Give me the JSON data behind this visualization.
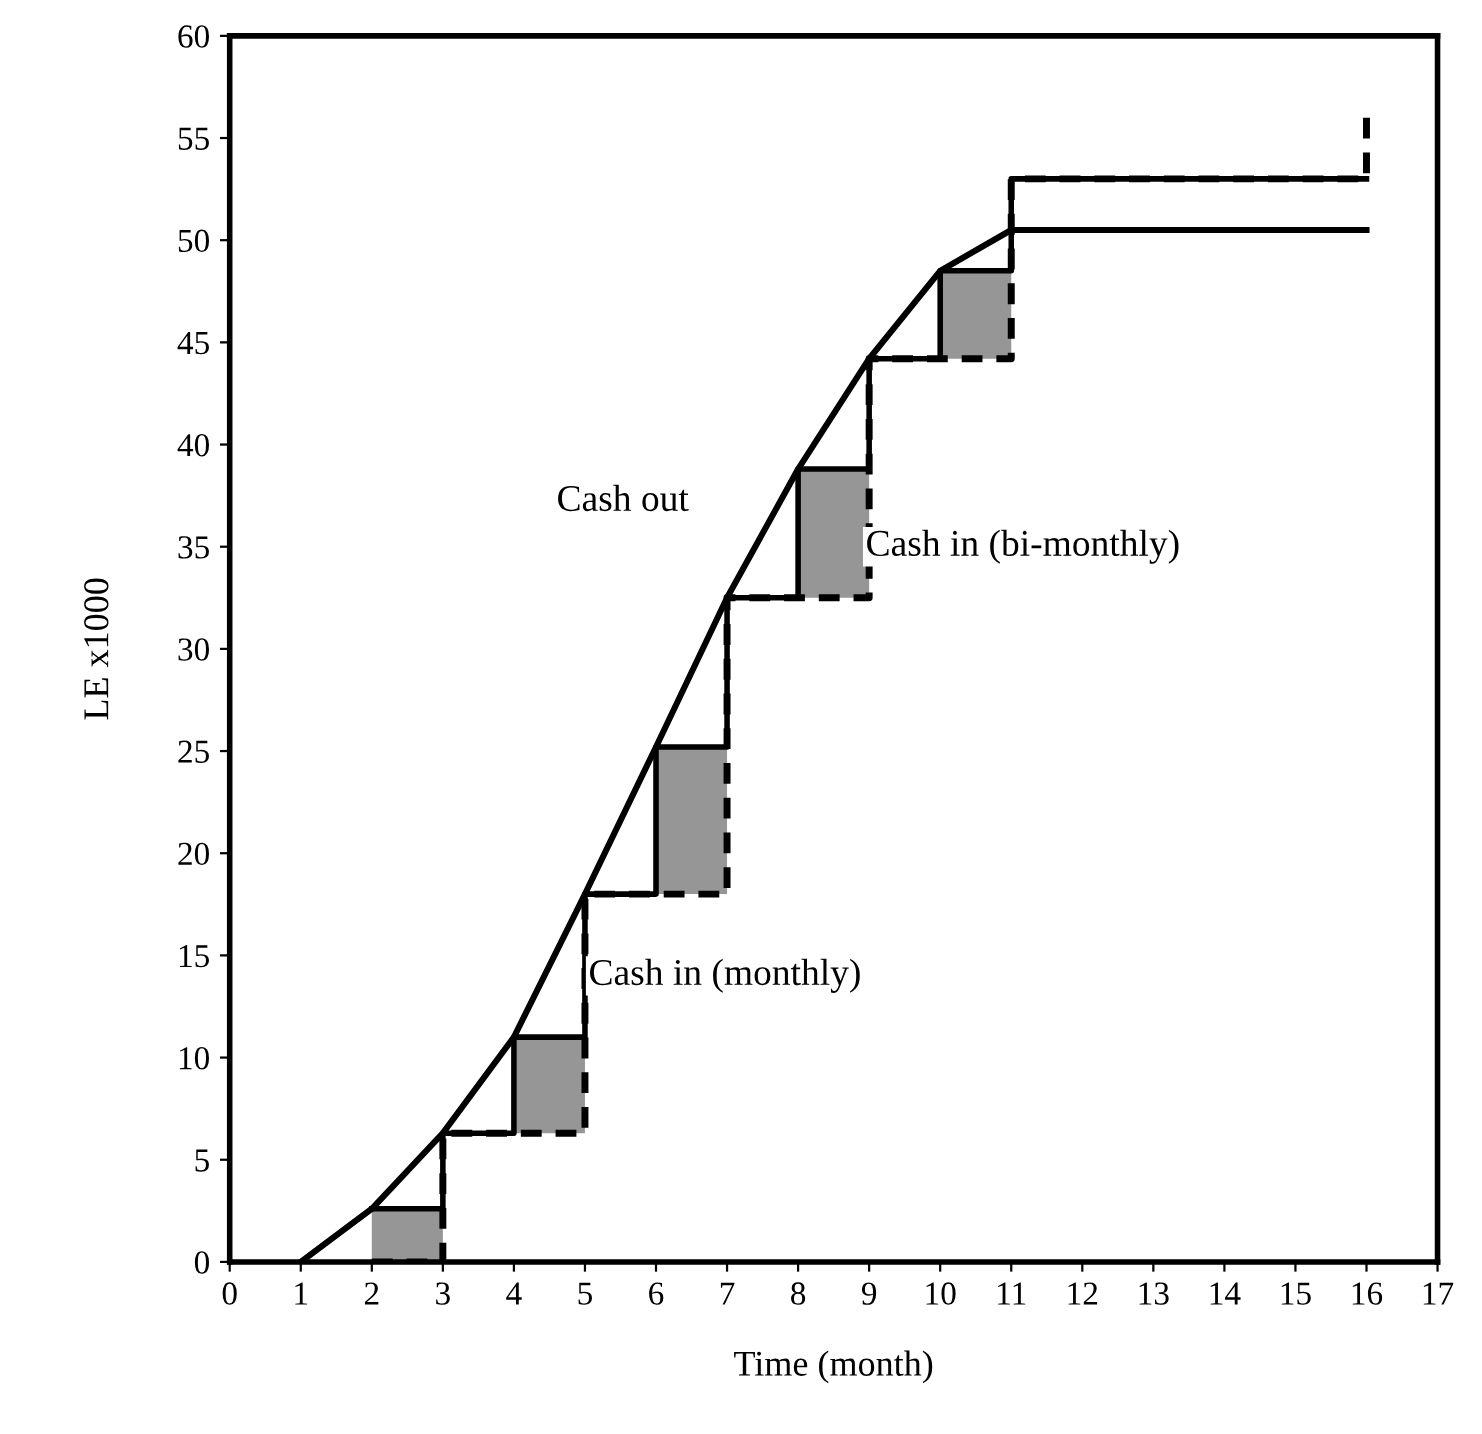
{
  "chart_data": {
    "type": "line",
    "xlabel": "Time (month)",
    "ylabel": "LE x1000",
    "xlim": [
      0,
      17
    ],
    "xticks": [
      0,
      1,
      2,
      3,
      4,
      5,
      6,
      7,
      8,
      9,
      10,
      11,
      12,
      13,
      14,
      15,
      16,
      17
    ],
    "ylim": [
      0,
      60
    ],
    "yticks": [
      0,
      5,
      10,
      15,
      20,
      25,
      30,
      35,
      40,
      45,
      50,
      55,
      60
    ],
    "grid": false,
    "legend": false,
    "marker": "none",
    "annotations": [
      "Cash out",
      "Cash in (bi-monthly)",
      "Cash in (monthly)"
    ],
    "series": [
      {
        "type": "bar",
        "color": "#969696",
        "x": [
          2.5,
          4.5,
          6.5,
          8.5,
          10.5
        ],
        "base": [
          0,
          6.3,
          18,
          32.5,
          44.2
        ],
        "values": [
          2.6,
          4.7,
          7.2,
          6.3,
          4.3
        ]
      },
      {
        "color": "#000000",
        "line_style": "solid",
        "x": [
          1,
          2,
          3,
          4,
          5,
          6,
          7,
          8,
          9,
          10,
          11,
          16
        ],
        "values": [
          0,
          2.6,
          6.3,
          11,
          18,
          25.2,
          32.5,
          38.8,
          44.2,
          48.5,
          50.5,
          50.5
        ]
      },
      {
        "type": "step",
        "color": "#000000",
        "line_style": "solid",
        "x": [
          2,
          3,
          4,
          5,
          6,
          7,
          8,
          9,
          10,
          11,
          16
        ],
        "values": [
          2.6,
          6.3,
          11,
          18,
          25.2,
          32.5,
          38.8,
          44.2,
          48.5,
          53,
          53
        ]
      },
      {
        "type": "step",
        "color": "#000000",
        "line_style": "dashed",
        "x": [
          2,
          3,
          5,
          7,
          9,
          11,
          16,
          16
        ],
        "values": [
          0,
          6.3,
          18,
          32.5,
          44.2,
          53,
          53,
          56
        ]
      }
    ]
  }
}
